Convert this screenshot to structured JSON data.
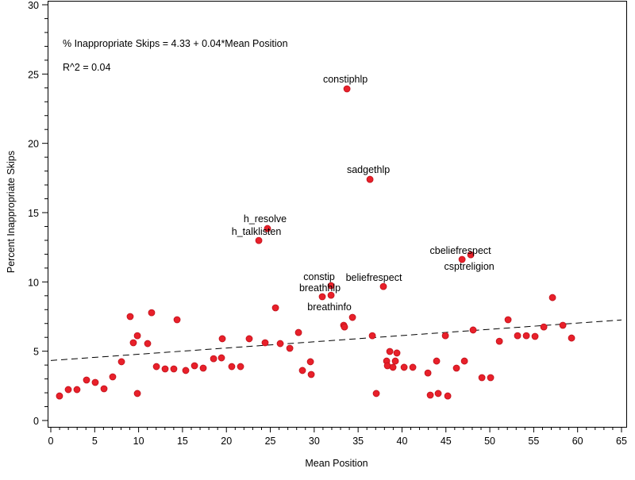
{
  "chart_data": {
    "type": "scatter",
    "title": "",
    "xlabel": "Mean Position",
    "ylabel": "Percent Inappropriate Skips",
    "xlim": [
      0,
      65
    ],
    "ylim": [
      0,
      30
    ],
    "xticks": [
      0,
      5,
      10,
      15,
      20,
      25,
      30,
      35,
      40,
      45,
      50,
      55,
      60,
      65
    ],
    "yticks": [
      0,
      5,
      10,
      15,
      20,
      25,
      30
    ],
    "grid": false,
    "marker_color": "#e8202a",
    "annotations": [
      "% Inappropriate Skips = 4.33 + 0.04*Mean Position",
      "R^2 = 0.04"
    ],
    "fit_line": {
      "intercept": 4.33,
      "slope": 0.045,
      "style": "dashed"
    },
    "points": [
      {
        "x": 0.99,
        "y": 1.77
      },
      {
        "x": 1.99,
        "y": 2.23
      },
      {
        "x": 2.98,
        "y": 2.23
      },
      {
        "x": 4.07,
        "y": 2.92
      },
      {
        "x": 5.06,
        "y": 2.75
      },
      {
        "x": 6.06,
        "y": 2.29
      },
      {
        "x": 7.05,
        "y": 3.15
      },
      {
        "x": 8.05,
        "y": 4.24
      },
      {
        "x": 9.04,
        "y": 7.5
      },
      {
        "x": 9.4,
        "y": 5.61
      },
      {
        "x": 9.86,
        "y": 6.12
      },
      {
        "x": 9.86,
        "y": 1.95
      },
      {
        "x": 11.03,
        "y": 5.55
      },
      {
        "x": 11.48,
        "y": 7.78
      },
      {
        "x": 12.03,
        "y": 3.89
      },
      {
        "x": 13.02,
        "y": 3.72
      },
      {
        "x": 14.01,
        "y": 3.72
      },
      {
        "x": 14.38,
        "y": 7.27
      },
      {
        "x": 15.37,
        "y": 3.61
      },
      {
        "x": 16.37,
        "y": 3.95
      },
      {
        "x": 17.36,
        "y": 3.78
      },
      {
        "x": 18.54,
        "y": 4.46
      },
      {
        "x": 19.44,
        "y": 4.52
      },
      {
        "x": 19.53,
        "y": 5.9
      },
      {
        "x": 20.61,
        "y": 3.89
      },
      {
        "x": 21.61,
        "y": 3.89
      },
      {
        "x": 22.6,
        "y": 5.9
      },
      {
        "x": 23.69,
        "y": 12.99,
        "label": "h_talklisten"
      },
      {
        "x": 24.41,
        "y": 5.61
      },
      {
        "x": 24.68,
        "y": 13.85,
        "label": "h_resolve"
      },
      {
        "x": 25.59,
        "y": 8.13
      },
      {
        "x": 26.13,
        "y": 5.55
      },
      {
        "x": 27.22,
        "y": 5.21
      },
      {
        "x": 28.21,
        "y": 6.35
      },
      {
        "x": 28.66,
        "y": 3.61
      },
      {
        "x": 29.57,
        "y": 4.24
      },
      {
        "x": 29.66,
        "y": 3.32
      },
      {
        "x": 30.92,
        "y": 8.93,
        "label": "breathhlp"
      },
      {
        "x": 31.92,
        "y": 9.73,
        "label": "constip"
      },
      {
        "x": 31.92,
        "y": 9.04
      },
      {
        "x": 33.36,
        "y": 6.87
      },
      {
        "x": 33.45,
        "y": 6.75
      },
      {
        "x": 33.73,
        "y": 23.93,
        "label": "constiphlp"
      },
      {
        "x": 34.36,
        "y": 7.44,
        "label": "breathinfo"
      },
      {
        "x": 36.35,
        "y": 17.4,
        "label": "sadgethlp"
      },
      {
        "x": 36.62,
        "y": 6.12
      },
      {
        "x": 37.07,
        "y": 1.95
      },
      {
        "x": 37.88,
        "y": 9.67,
        "label": "beliefrespect"
      },
      {
        "x": 38.25,
        "y": 4.29
      },
      {
        "x": 38.34,
        "y": 3.95
      },
      {
        "x": 38.61,
        "y": 4.98
      },
      {
        "x": 38.97,
        "y": 3.84
      },
      {
        "x": 39.24,
        "y": 4.29
      },
      {
        "x": 39.42,
        "y": 4.87
      },
      {
        "x": 40.24,
        "y": 3.84
      },
      {
        "x": 41.23,
        "y": 3.84
      },
      {
        "x": 42.95,
        "y": 3.43
      },
      {
        "x": 43.22,
        "y": 1.83
      },
      {
        "x": 43.94,
        "y": 4.29
      },
      {
        "x": 44.12,
        "y": 1.95
      },
      {
        "x": 44.94,
        "y": 6.12
      },
      {
        "x": 45.21,
        "y": 1.77
      },
      {
        "x": 46.2,
        "y": 3.78
      },
      {
        "x": 46.84,
        "y": 11.62,
        "label": "csptreligion"
      },
      {
        "x": 47.11,
        "y": 4.29
      },
      {
        "x": 47.83,
        "y": 11.96,
        "label": "cbeliefrespect"
      },
      {
        "x": 48.1,
        "y": 6.53
      },
      {
        "x": 49.1,
        "y": 3.09
      },
      {
        "x": 50.09,
        "y": 3.09
      },
      {
        "x": 51.09,
        "y": 5.72
      },
      {
        "x": 52.08,
        "y": 7.27
      },
      {
        "x": 53.16,
        "y": 6.12
      },
      {
        "x": 54.16,
        "y": 6.12
      },
      {
        "x": 55.15,
        "y": 6.07
      },
      {
        "x": 56.15,
        "y": 6.75
      },
      {
        "x": 57.14,
        "y": 8.87
      },
      {
        "x": 58.32,
        "y": 6.87
      },
      {
        "x": 59.31,
        "y": 5.95
      }
    ]
  }
}
